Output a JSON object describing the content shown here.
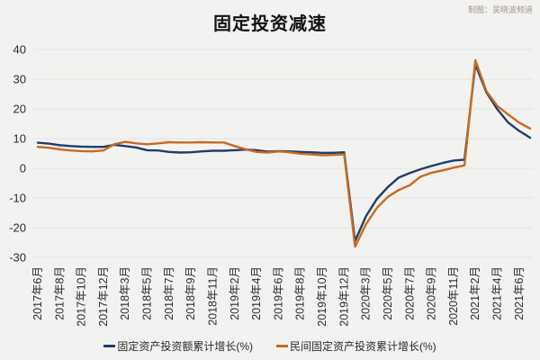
{
  "title": "固定投资减速",
  "credit": "制图：吴晓波频道",
  "colors": {
    "background": "#f2f2f1",
    "grid": "#e3e2e0",
    "text": "#2b2b2b",
    "title_text": "#111111",
    "credit_text": "#a3968a"
  },
  "chart_data": {
    "type": "line",
    "title": "固定投资减速",
    "xlabel": "",
    "ylabel": "",
    "ylim": [
      -30,
      40
    ],
    "y_ticks": [
      40,
      30,
      20,
      10,
      0,
      -10,
      -20,
      -30
    ],
    "grid": "horizontal",
    "legend_position": "bottom",
    "x_points_per_tick": 2,
    "x_tick_labels": [
      "2017年6月",
      "2017年8月",
      "2017年10月",
      "2017年12月",
      "2018年3月",
      "2018年5月",
      "2018年7月",
      "2018年9月",
      "2018年11月",
      "2019年2月",
      "2019年4月",
      "2019年6月",
      "2019年8月",
      "2019年10月",
      "2019年12月",
      "2020年3月",
      "2020年5月",
      "2020年7月",
      "2020年9月",
      "2020年11月",
      "2021年2月",
      "2021年4月",
      "2021年6月"
    ],
    "x": [
      "2017-06",
      "2017-07",
      "2017-08",
      "2017-09",
      "2017-10",
      "2017-11",
      "2017-12",
      "2018-02",
      "2018-03",
      "2018-04",
      "2018-05",
      "2018-06",
      "2018-07",
      "2018-08",
      "2018-09",
      "2018-10",
      "2018-11",
      "2018-12",
      "2019-02",
      "2019-03",
      "2019-04",
      "2019-05",
      "2019-06",
      "2019-07",
      "2019-08",
      "2019-09",
      "2019-10",
      "2019-11",
      "2019-12",
      "2020-02",
      "2020-03",
      "2020-04",
      "2020-05",
      "2020-06",
      "2020-07",
      "2020-08",
      "2020-09",
      "2020-10",
      "2020-11",
      "2020-12",
      "2021-02",
      "2021-03",
      "2021-04",
      "2021-05",
      "2021-06",
      "2021-07"
    ],
    "series": [
      {
        "name": "固定资产投资额累计增长(%)",
        "color": "#1f3c6b",
        "values": [
          8.6,
          8.3,
          7.8,
          7.5,
          7.3,
          7.2,
          7.2,
          7.9,
          7.5,
          7.0,
          6.1,
          6.0,
          5.5,
          5.3,
          5.4,
          5.7,
          5.9,
          5.9,
          6.1,
          6.3,
          6.1,
          5.6,
          5.8,
          5.7,
          5.5,
          5.4,
          5.2,
          5.2,
          5.4,
          -24.5,
          -16.1,
          -10.3,
          -6.3,
          -3.1,
          -1.6,
          -0.3,
          0.8,
          1.8,
          2.6,
          2.9,
          35.0,
          25.6,
          19.9,
          15.4,
          12.6,
          10.3
        ]
      },
      {
        "name": "民间固定资产投资累计增长(%)",
        "color": "#c96a1d",
        "values": [
          7.2,
          6.9,
          6.4,
          6.0,
          5.8,
          5.7,
          6.0,
          8.1,
          8.9,
          8.4,
          8.1,
          8.4,
          8.8,
          8.7,
          8.7,
          8.8,
          8.7,
          8.7,
          7.5,
          6.4,
          5.5,
          5.3,
          5.7,
          5.4,
          4.9,
          4.7,
          4.4,
          4.5,
          4.7,
          -26.4,
          -18.8,
          -13.3,
          -9.6,
          -7.3,
          -5.7,
          -2.8,
          -1.5,
          -0.7,
          0.2,
          1.0,
          36.4,
          26.0,
          21.0,
          18.1,
          15.4,
          13.4
        ]
      }
    ]
  }
}
